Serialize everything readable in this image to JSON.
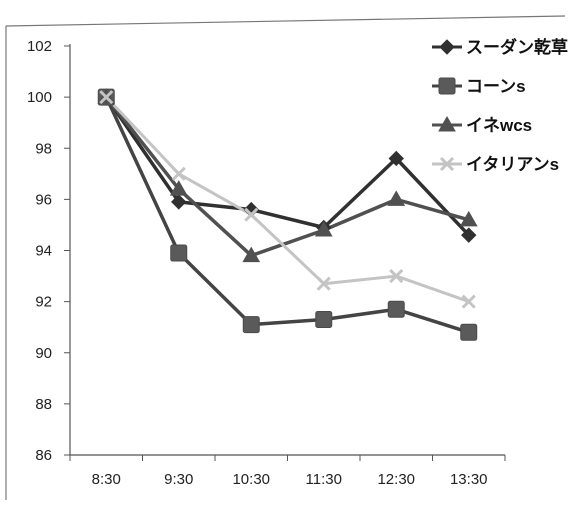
{
  "chart_data": {
    "type": "line",
    "categories": [
      "8:30",
      "9:30",
      "10:30",
      "11:30",
      "12:30",
      "13:30"
    ],
    "ylim": [
      86,
      102
    ],
    "yticks": [
      86,
      88,
      90,
      92,
      94,
      96,
      98,
      100,
      102
    ],
    "grid": false,
    "legend_position": "top-right",
    "series": [
      {
        "name": "スーダン乾草",
        "values": [
          100,
          95.9,
          95.6,
          94.9,
          97.6,
          94.6
        ],
        "color": "#303030",
        "marker": "diamond"
      },
      {
        "name": "コーンs",
        "values": [
          100,
          93.9,
          91.1,
          91.3,
          91.7,
          90.8
        ],
        "color": "#444444",
        "marker": "square"
      },
      {
        "name": "イネwcs",
        "values": [
          100,
          96.4,
          93.8,
          94.8,
          96.0,
          95.2
        ],
        "color": "#505050",
        "marker": "triangle"
      },
      {
        "name": "イタリアンs",
        "values": [
          100,
          97.0,
          95.4,
          92.7,
          93.0,
          92.0
        ],
        "color": "#c4c4c4",
        "marker": "x"
      }
    ]
  }
}
